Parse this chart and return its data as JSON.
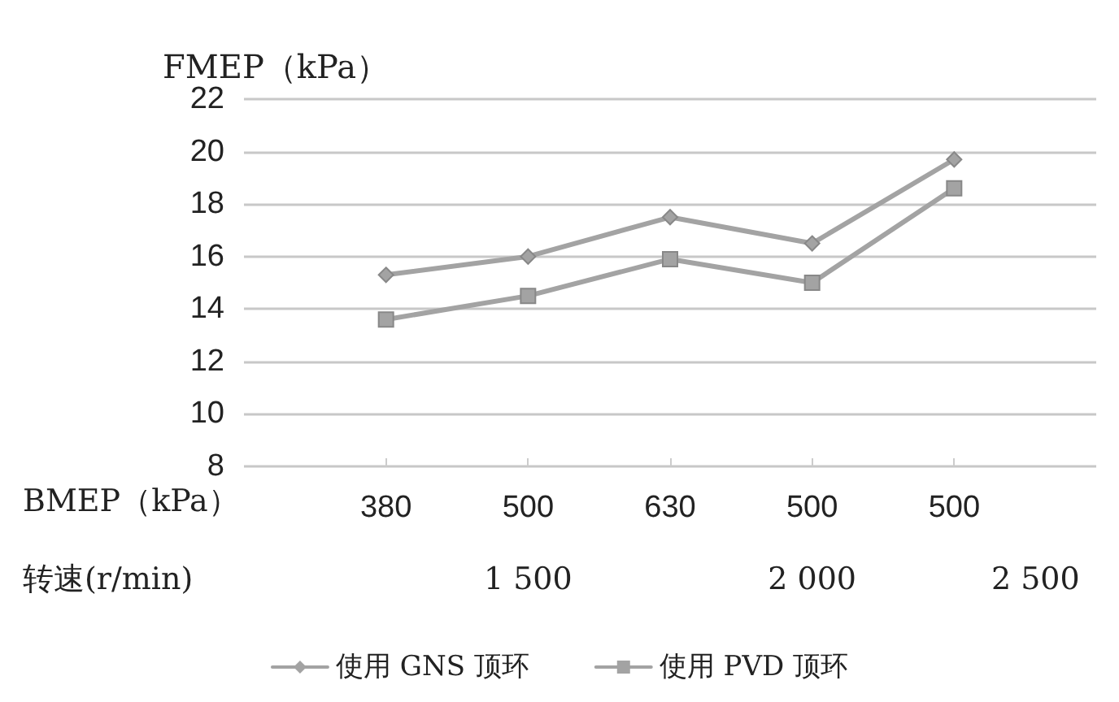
{
  "chart_data": {
    "type": "line",
    "ylabel": "FMEP（kPa）",
    "xlabel": "BMEP（kPa）",
    "categories": [
      "380",
      "500",
      "630",
      "500",
      "500"
    ],
    "series": [
      {
        "name": "使用 GNS 顶环",
        "color": "#a3a3a3",
        "marker": "diamond",
        "values": [
          15.3,
          16.0,
          17.5,
          16.5,
          19.7
        ]
      },
      {
        "name": "使用 PVD 顶环",
        "color": "#a3a3a3",
        "marker": "square",
        "values": [
          13.6,
          14.5,
          15.9,
          15.0,
          18.6
        ]
      }
    ],
    "ylim": [
      8,
      22
    ],
    "yticks": [
      8,
      10,
      12,
      14,
      16,
      18,
      20,
      22
    ],
    "grid": "y",
    "legend": "bottom",
    "line_style": "solid",
    "annotations": [
      "转速(r/min)",
      "1 500",
      "2 000",
      "2 500"
    ]
  }
}
